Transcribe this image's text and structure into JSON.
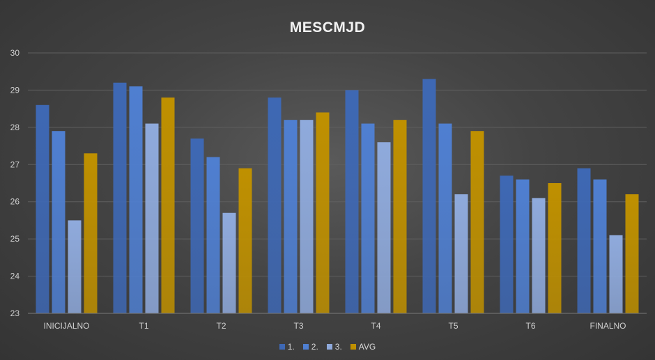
{
  "chart_data": {
    "type": "bar",
    "title": "MESCMJD",
    "xlabel": "",
    "ylabel": "",
    "ylim": [
      23,
      30
    ],
    "yticks": [
      23,
      24,
      25,
      26,
      27,
      28,
      29,
      30
    ],
    "grid": true,
    "legend_position": "bottom",
    "categories": [
      "INICIJALNO",
      "T1",
      "T2",
      "T3",
      "T4",
      "T5",
      "T6",
      "FINALNO"
    ],
    "series": [
      {
        "name": "1.",
        "color": "#3e68b4",
        "values": [
          28.6,
          29.2,
          27.7,
          28.8,
          29.0,
          29.3,
          26.7,
          26.9
        ]
      },
      {
        "name": "2.",
        "color": "#4f7fd1",
        "values": [
          27.9,
          29.1,
          27.2,
          28.2,
          28.1,
          28.1,
          26.6,
          26.6
        ]
      },
      {
        "name": "3.",
        "color": "#8faadc",
        "values": [
          25.5,
          28.1,
          25.7,
          28.2,
          27.6,
          26.2,
          26.1,
          25.1
        ]
      },
      {
        "name": "AVG",
        "color": "#bf9000",
        "values": [
          27.3,
          28.8,
          26.9,
          28.4,
          28.2,
          27.9,
          26.5,
          26.2
        ]
      }
    ]
  }
}
